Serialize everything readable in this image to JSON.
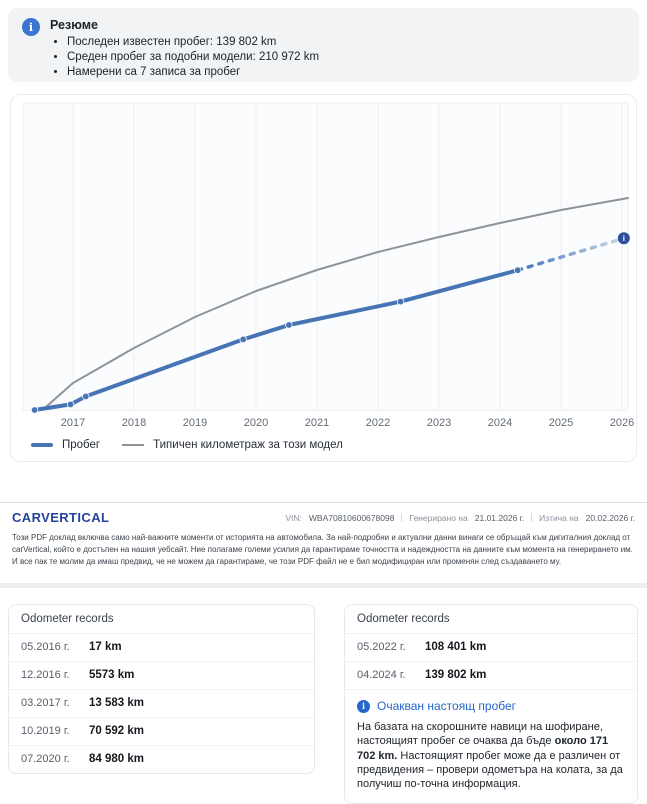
{
  "summary": {
    "title": "Резюме",
    "bullets": [
      "Последен известен пробег: 139 802 km",
      "Среден пробег за подобни модели: 210 972 km",
      "Намерени са 7 записа за пробег"
    ]
  },
  "chart_data": {
    "type": "line",
    "title": "",
    "xlabel": "",
    "ylabel": "",
    "x_ticks": [
      2017,
      2018,
      2019,
      2020,
      2021,
      2022,
      2023,
      2024,
      2025,
      2026
    ],
    "xlim": [
      2016.2,
      2026.2
    ],
    "ylim": [
      0,
      307000
    ],
    "grid": "vertical",
    "legend_position": "bottom-left",
    "legend": [
      "Пробег",
      "Типичен километраж за този модел"
    ],
    "series": [
      {
        "name": "Пробег",
        "style": "solid",
        "color": "#4674b4",
        "width": 4,
        "markers": true,
        "points": [
          [
            2016.37,
            17
          ],
          [
            2016.96,
            5573
          ],
          [
            2017.21,
            13583
          ],
          [
            2019.79,
            70592
          ],
          [
            2020.54,
            84980
          ],
          [
            2022.37,
            108401
          ],
          [
            2024.29,
            139802
          ]
        ]
      },
      {
        "name": "Пробег (очакван)",
        "style": "dashed-fade",
        "color": "#4674b4",
        "fade_to": "#ccd8ed",
        "width": 3.5,
        "end_marker": "info-circle",
        "end_marker_color": "#2b4f9e",
        "points": [
          [
            2024.29,
            139802
          ],
          [
            2026.03,
            171702
          ]
        ]
      },
      {
        "name": "Типичен километраж за този модел",
        "style": "solid",
        "color": "#8f9399",
        "width": 2,
        "markers": false,
        "points": [
          [
            2016.5,
            0
          ],
          [
            2017,
            27000
          ],
          [
            2018,
            62000
          ],
          [
            2019,
            93000
          ],
          [
            2020,
            119000
          ],
          [
            2021,
            140000
          ],
          [
            2022,
            158000
          ],
          [
            2023,
            173000
          ],
          [
            2024,
            187000
          ],
          [
            2025,
            200000
          ],
          [
            2026.1,
            212000
          ]
        ]
      }
    ]
  },
  "footer": {
    "logo": "CARVERTICAL",
    "vin_label": "VIN:",
    "vin": "WBA70810600678098",
    "generated_label": "Генерирано на",
    "generated": "21.01.2026 г.",
    "expires_label": "Изтича на",
    "expires": "20.02.2026 г.",
    "disclaimer": "Този PDF доклад включва само най-важните моменти от историята на автомобила. За най-подробни и актуални данни винаги се обръщай към дигиталния доклад от carVertical, който е достъпен на нашия уебсайт. Ние полагаме големи усилия да гарантираме точността и надеждността на данните към момента на генерирането им. И все пак те молим да имаш предвид, че не можем да гарантираме, че този PDF файл не е бил модифициран или променян след създаването му."
  },
  "records_left": {
    "title": "Odometer records",
    "rows": [
      {
        "date": "05.2016 г.",
        "value": "17 km"
      },
      {
        "date": "12.2016 г.",
        "value": "5573 km"
      },
      {
        "date": "03.2017 г.",
        "value": "13 583 km"
      },
      {
        "date": "10.2019 г.",
        "value": "70 592 km"
      },
      {
        "date": "07.2020 г.",
        "value": "84 980 km"
      }
    ]
  },
  "records_right": {
    "title": "Odometer records",
    "rows": [
      {
        "date": "05.2022 г.",
        "value": "108 401 km"
      },
      {
        "date": "04.2024 г.",
        "value": "139 802 km"
      }
    ],
    "note": {
      "title": "Очакван настоящ пробег",
      "text_before": "На базата на скорошните навици на шофиране, настоящият пробег се очаква да бъде ",
      "text_bold": "около 171 702 km.",
      "text_after": " Настоящият пробег може да е различен от предвидения – провери одометъра на колата, за да получиш по-точна информация."
    }
  }
}
